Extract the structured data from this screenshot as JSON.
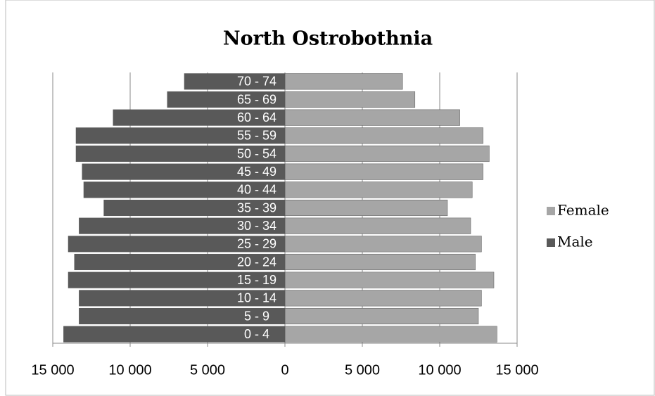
{
  "chart_data": {
    "type": "pyramid",
    "title": "North Ostrobothnia",
    "categories": [
      "0 - 4",
      "5 - 9",
      "10 - 14",
      "15 - 19",
      "20 - 24",
      "25 - 29",
      "30 - 34",
      "35 - 39",
      "40 - 44",
      "45 - 49",
      "50 - 54",
      "55 - 59",
      "60 - 64",
      "65 - 69",
      "70 - 74"
    ],
    "series": [
      {
        "name": "Female",
        "color": "#a6a6a6",
        "values": [
          13700,
          12500,
          12700,
          13500,
          12300,
          12700,
          12000,
          10500,
          12100,
          12800,
          13200,
          12800,
          11300,
          8400,
          7600
        ]
      },
      {
        "name": "Male",
        "color": "#595959",
        "values": [
          -14300,
          -13300,
          -13300,
          -14000,
          -13600,
          -14000,
          -13300,
          -11700,
          -13000,
          -13100,
          -13500,
          -13500,
          -11100,
          -7600,
          -6500
        ]
      }
    ],
    "xlim": [
      -15000,
      15000
    ],
    "xticks": [
      {
        "value": -15000,
        "label": "15 000"
      },
      {
        "value": -10000,
        "label": "10 000"
      },
      {
        "value": -5000,
        "label": "5 000"
      },
      0,
      {
        "value": 5000,
        "label": "5 000"
      },
      {
        "value": 10000,
        "label": "10 000"
      },
      {
        "value": 15000,
        "label": "15 000"
      }
    ],
    "grid": true,
    "legend": "right"
  }
}
